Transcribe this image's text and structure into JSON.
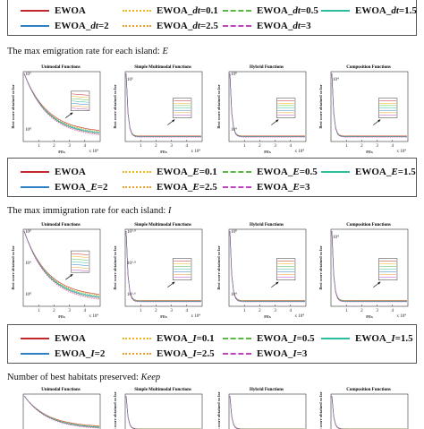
{
  "series_styles": [
    {
      "name_prefix": "EWOA",
      "color": "#c0282d",
      "dash": "none"
    },
    {
      "color": "#f0b41e",
      "dash": "2,3"
    },
    {
      "color": "#5ab946",
      "dash": "7,3,2,3"
    },
    {
      "color": "#2ebd9c",
      "dash": "none"
    },
    {
      "color": "#2d7fc4",
      "dash": "none"
    },
    {
      "color": "#e8a22c",
      "dash": "2,3"
    },
    {
      "color": "#c044c0",
      "dash": "7,3,2,3"
    }
  ],
  "legends": [
    {
      "id": "dt",
      "entries": [
        {
          "base": "EWOA",
          "param": "",
          "value": ""
        },
        {
          "base": "EWOA_",
          "param": "dt",
          "value": "=0.1"
        },
        {
          "base": "EWOA_",
          "param": "dt",
          "value": "=0.5"
        },
        {
          "base": "EWOA_",
          "param": "dt",
          "value": "=1.5"
        },
        {
          "base": "EWOA_",
          "param": "dt",
          "value": "=2"
        },
        {
          "base": "EWOA_",
          "param": "dt",
          "value": "=2.5"
        },
        {
          "base": "EWOA_",
          "param": "dt",
          "value": "=3"
        }
      ]
    },
    {
      "id": "E",
      "entries": [
        {
          "base": "EWOA",
          "param": "",
          "value": ""
        },
        {
          "base": "EWOA_",
          "param": "E",
          "value": "=0.1"
        },
        {
          "base": "EWOA_",
          "param": "E",
          "value": "=0.5"
        },
        {
          "base": "EWOA_",
          "param": "E",
          "value": "=1.5"
        },
        {
          "base": "EWOA_",
          "param": "E",
          "value": "=2"
        },
        {
          "base": "EWOA_",
          "param": "E",
          "value": "=2.5"
        },
        {
          "base": "EWOA_",
          "param": "E",
          "value": "=3"
        }
      ]
    },
    {
      "id": "I",
      "entries": [
        {
          "base": "EWOA",
          "param": "",
          "value": ""
        },
        {
          "base": "EWOA_",
          "param": "I",
          "value": "=0.1"
        },
        {
          "base": "EWOA_",
          "param": "I",
          "value": "=0.5"
        },
        {
          "base": "EWOA_",
          "param": "I",
          "value": "=1.5"
        },
        {
          "base": "EWOA_",
          "param": "I",
          "value": "=2"
        },
        {
          "base": "EWOA_",
          "param": "I",
          "value": "=2.5"
        },
        {
          "base": "EWOA_",
          "param": "I",
          "value": "=3"
        }
      ]
    }
  ],
  "sections": [
    {
      "title_text": "The max emigration rate for each island: ",
      "title_param": "E"
    },
    {
      "title_text": "The max immigration rate for each island: ",
      "title_param": "I"
    },
    {
      "title_text": "Number of best habitats preserved: ",
      "title_param": "Keep"
    }
  ],
  "chart_data": [
    {
      "type": "line",
      "group": "E",
      "title": "Unimodal Functions",
      "xlabel": "FEs",
      "ylabel": "Best score obtained so far",
      "xlim": [
        0,
        50000
      ],
      "x_ticks": [
        "1",
        "2",
        "3",
        "4"
      ],
      "x_exponent": "x 10⁴",
      "y_ticks": [
        "10⁵",
        "10⁰"
      ],
      "shape": "gradual",
      "inset": true
    },
    {
      "type": "line",
      "group": "E",
      "title": "Simple Multimodal Functions",
      "xlabel": "FEs",
      "ylabel": "Best score obtained so far",
      "xlim": [
        0,
        50000
      ],
      "x_ticks": [
        "1",
        "2",
        "3",
        "4"
      ],
      "x_exponent": "x 10⁴",
      "y_ticks": [
        "10⁵"
      ],
      "shape": "sharp",
      "inset": true
    },
    {
      "type": "line",
      "group": "E",
      "title": "Hybrid Functions",
      "xlabel": "FEs",
      "ylabel": "Best score obtained so far",
      "xlim": [
        0,
        50000
      ],
      "x_ticks": [
        "1",
        "2",
        "3",
        "4"
      ],
      "x_exponent": "x 10⁴",
      "y_ticks": [
        "10⁸",
        "10⁴"
      ],
      "shape": "sharp",
      "inset": true
    },
    {
      "type": "line",
      "group": "E",
      "title": "Composition Functions",
      "xlabel": "FEs",
      "ylabel": "Best score obtained so far",
      "xlim": [
        0,
        50000
      ],
      "x_ticks": [
        "1",
        "2",
        "3",
        "4"
      ],
      "x_exponent": "x 10⁴",
      "y_ticks": [
        "10⁴"
      ],
      "shape": "sharp",
      "inset": true
    },
    {
      "type": "line",
      "group": "I",
      "title": "Unimodal Functions",
      "xlabel": "FEs",
      "ylabel": "Best score obtained so far",
      "xlim": [
        0,
        50000
      ],
      "x_ticks": [
        "1",
        "2",
        "3",
        "4"
      ],
      "x_exponent": "x 10⁴",
      "y_ticks": [
        "10⁸",
        "10⁴",
        "10⁰"
      ],
      "shape": "gradual",
      "inset": true
    },
    {
      "type": "line",
      "group": "I",
      "title": "Simple Multimodal Functions",
      "xlabel": "FEs",
      "ylabel": "Best score obtained so far",
      "xlim": [
        0,
        50000
      ],
      "x_ticks": [
        "1",
        "2",
        "3",
        "4"
      ],
      "x_exponent": "x 10⁴",
      "y_ticks": [
        "10³·⁰",
        "10²·⁸",
        "10²·⁶"
      ],
      "shape": "sharp",
      "inset": true
    },
    {
      "type": "line",
      "group": "I",
      "title": "Hybrid Functions",
      "xlabel": "FEs",
      "ylabel": "Best score obtained so far",
      "xlim": [
        0,
        50000
      ],
      "x_ticks": [
        "1",
        "2",
        "3",
        "4"
      ],
      "x_exponent": "x 10⁴",
      "y_ticks": [
        "10⁸",
        "10⁴"
      ],
      "shape": "sharp",
      "inset": true
    },
    {
      "type": "line",
      "group": "I",
      "title": "Composition Functions",
      "xlabel": "FEs",
      "ylabel": "Best score obtained so far",
      "xlim": [
        0,
        50000
      ],
      "x_ticks": [
        "1",
        "2",
        "3",
        "4"
      ],
      "x_exponent": "x 10⁴",
      "y_ticks": [
        "10⁴"
      ],
      "shape": "sharp",
      "inset": true
    },
    {
      "type": "line",
      "group": "Keep",
      "title": "Unimodal Functions",
      "xlabel": "",
      "ylabel": "",
      "x_ticks": [],
      "y_ticks": [],
      "shape": "gradual",
      "inset": false
    },
    {
      "type": "line",
      "group": "Keep",
      "title": "Simple Multimodal Functions",
      "xlabel": "",
      "ylabel": "Best score obtained so far",
      "x_ticks": [],
      "y_ticks": [],
      "shape": "sharp",
      "inset": false
    },
    {
      "type": "line",
      "group": "Keep",
      "title": "Hybrid Functions",
      "xlabel": "",
      "ylabel": "Best score obtained so far",
      "x_ticks": [],
      "y_ticks": [],
      "shape": "sharp",
      "inset": false
    },
    {
      "type": "line",
      "group": "Keep",
      "title": "Composition Functions",
      "xlabel": "",
      "ylabel": "Best score obtained so far",
      "x_ticks": [],
      "y_ticks": [],
      "shape": "sharp",
      "inset": false
    }
  ]
}
